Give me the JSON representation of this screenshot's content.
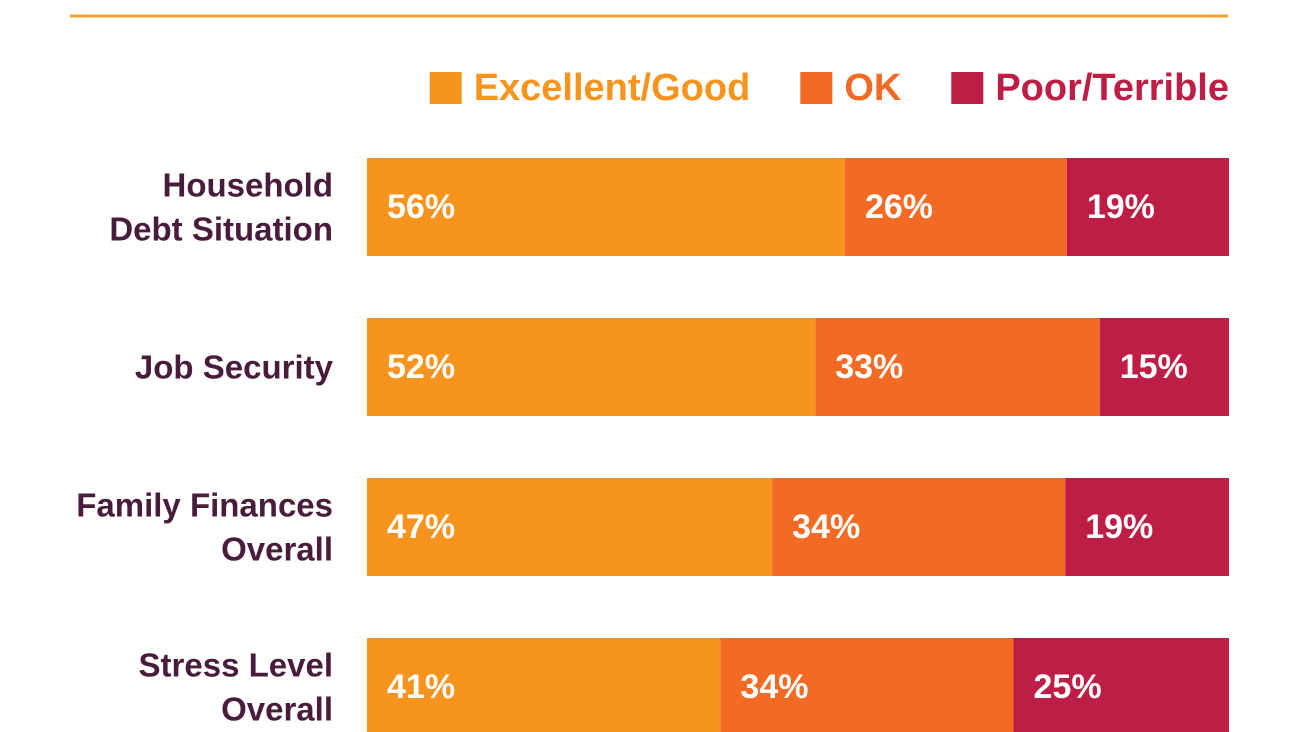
{
  "chart_data": {
    "type": "bar",
    "orientation": "horizontal",
    "stacked": true,
    "percent_stacked": true,
    "categories": [
      "Household Debt Situation",
      "Job Security",
      "Family Finances Overall",
      "Stress Level Overall"
    ],
    "category_label_lines": [
      [
        "Household",
        "Debt Situation"
      ],
      [
        "Job Security"
      ],
      [
        "Family Finances",
        "Overall"
      ],
      [
        "Stress Level",
        "Overall"
      ]
    ],
    "series": [
      {
        "name": "Excellent/Good",
        "values": [
          56,
          52,
          47,
          41
        ],
        "labels": [
          "56%",
          "52%",
          "47%",
          "41%"
        ],
        "color": "#f7941d"
      },
      {
        "name": "OK",
        "values": [
          26,
          33,
          34,
          34
        ],
        "labels": [
          "26%",
          "33%",
          "34%",
          "34%"
        ],
        "color": "#f26a24"
      },
      {
        "name": "Poor/Terrible",
        "values": [
          19,
          15,
          19,
          25
        ],
        "labels": [
          "19%",
          "15%",
          "19%",
          "25%"
        ],
        "color": "#be1e45"
      }
    ],
    "legend_position": "top-right",
    "grid": false,
    "category_label_color": "#4a1c3c",
    "value_label_color": "#ffffff",
    "rule_color": "#f4a531"
  }
}
